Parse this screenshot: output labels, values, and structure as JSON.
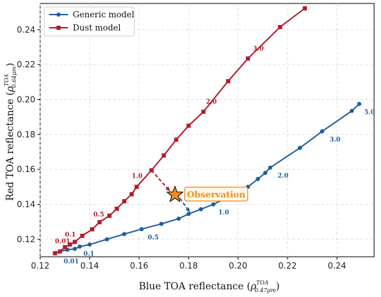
{
  "chart_data": {
    "type": "line",
    "xlabel": "Blue TOA reflectance",
    "ylabel": "Red TOA reflectance",
    "xlim": [
      0.12,
      0.255
    ],
    "ylim": [
      0.11,
      0.255
    ],
    "xticks": [
      0.12,
      0.14,
      0.16,
      0.18,
      0.2,
      0.22,
      0.24
    ],
    "yticks": [
      0.12,
      0.14,
      0.16,
      0.18,
      0.2,
      0.22,
      0.24
    ],
    "grid": true,
    "legend_position": "top-left",
    "series": [
      {
        "name": "Generic model",
        "color": "#1f5f9e",
        "marker": "circle",
        "points": [
          [
            0.126,
            0.112
          ],
          [
            0.128,
            0.113
          ],
          [
            0.131,
            0.114
          ],
          [
            0.134,
            0.1145
          ],
          [
            0.136,
            0.1158
          ],
          [
            0.14,
            0.117
          ],
          [
            0.147,
            0.12
          ],
          [
            0.154,
            0.123
          ],
          [
            0.161,
            0.1258
          ],
          [
            0.169,
            0.1288
          ],
          [
            0.176,
            0.1318
          ],
          [
            0.18,
            0.1345
          ],
          [
            0.185,
            0.1372
          ],
          [
            0.19,
            0.14
          ],
          [
            0.198,
            0.1455
          ],
          [
            0.204,
            0.15
          ],
          [
            0.208,
            0.1545
          ],
          [
            0.211,
            0.158
          ],
          [
            0.213,
            0.161
          ],
          [
            0.225,
            0.1723
          ],
          [
            0.234,
            0.1818
          ],
          [
            0.246,
            0.1935
          ],
          [
            0.249,
            0.1975
          ]
        ],
        "labels": [
          {
            "text": "0.01",
            "x": 0.126,
            "y": 0.112,
            "dx": 0.0035,
            "dy": -0.0058
          },
          {
            "text": "0.1",
            "x": 0.134,
            "y": 0.1145,
            "dx": 0.0035,
            "dy": -0.004
          },
          {
            "text": "0.5",
            "x": 0.161,
            "y": 0.1258,
            "dx": 0.0025,
            "dy": -0.0058
          },
          {
            "text": "1.0",
            "x": 0.19,
            "y": 0.14,
            "dx": 0.002,
            "dy": -0.0058
          },
          {
            "text": "2.0",
            "x": 0.213,
            "y": 0.161,
            "dx": 0.003,
            "dy": -0.0058
          },
          {
            "text": "3.0",
            "x": 0.234,
            "y": 0.1818,
            "dx": 0.003,
            "dy": -0.0058
          },
          {
            "text": "5.0",
            "x": 0.249,
            "y": 0.1975,
            "dx": 0.002,
            "dy": -0.0058
          }
        ]
      },
      {
        "name": "Dust model",
        "color": "#b01c2e",
        "marker": "square",
        "points": [
          [
            0.126,
            0.112
          ],
          [
            0.128,
            0.113
          ],
          [
            0.13,
            0.1155
          ],
          [
            0.132,
            0.117
          ],
          [
            0.134,
            0.1185
          ],
          [
            0.137,
            0.122
          ],
          [
            0.141,
            0.1257
          ],
          [
            0.144,
            0.1298
          ],
          [
            0.148,
            0.1335
          ],
          [
            0.151,
            0.1375
          ],
          [
            0.154,
            0.1418
          ],
          [
            0.157,
            0.1458
          ],
          [
            0.159,
            0.15
          ],
          [
            0.165,
            0.1595
          ],
          [
            0.17,
            0.168
          ],
          [
            0.175,
            0.177
          ],
          [
            0.18,
            0.185
          ],
          [
            0.186,
            0.193
          ],
          [
            0.196,
            0.2105
          ],
          [
            0.204,
            0.2235
          ],
          [
            0.217,
            0.2415
          ],
          [
            0.227,
            0.2522
          ]
        ],
        "labels": [
          {
            "text": "0.01",
            "x": 0.128,
            "y": 0.113,
            "dx": -0.002,
            "dy": 0.0048
          },
          {
            "text": "0.1",
            "x": 0.132,
            "y": 0.117,
            "dx": -0.002,
            "dy": 0.0045
          },
          {
            "text": "0.5",
            "x": 0.151,
            "y": 0.1375,
            "dx": -0.0095,
            "dy": -0.0045
          },
          {
            "text": "1.0",
            "x": 0.165,
            "y": 0.1595,
            "dx": -0.008,
            "dy": -0.0045
          },
          {
            "text": "2.0",
            "x": 0.186,
            "y": 0.193,
            "dx": 0.001,
            "dy": 0.0045
          },
          {
            "text": "3.0",
            "x": 0.204,
            "y": 0.2235,
            "dx": 0.002,
            "dy": 0.0045
          },
          {
            "text": "5.0",
            "x": 0.227,
            "y": 0.2522,
            "dx": 0.002,
            "dy": 0.0048
          }
        ]
      }
    ],
    "observation": {
      "label": "Observation",
      "x": 0.1745,
      "y": 0.1455,
      "color": "#f28c1e",
      "arrows": [
        {
          "from": [
            0.165,
            0.1595
          ],
          "to": [
            0.1725,
            0.1475
          ],
          "color": "#b01c2e"
        },
        {
          "from": [
            0.1765,
            0.1435
          ],
          "to": [
            0.1805,
            0.1355
          ],
          "color": "#1f5f9e"
        }
      ]
    }
  }
}
